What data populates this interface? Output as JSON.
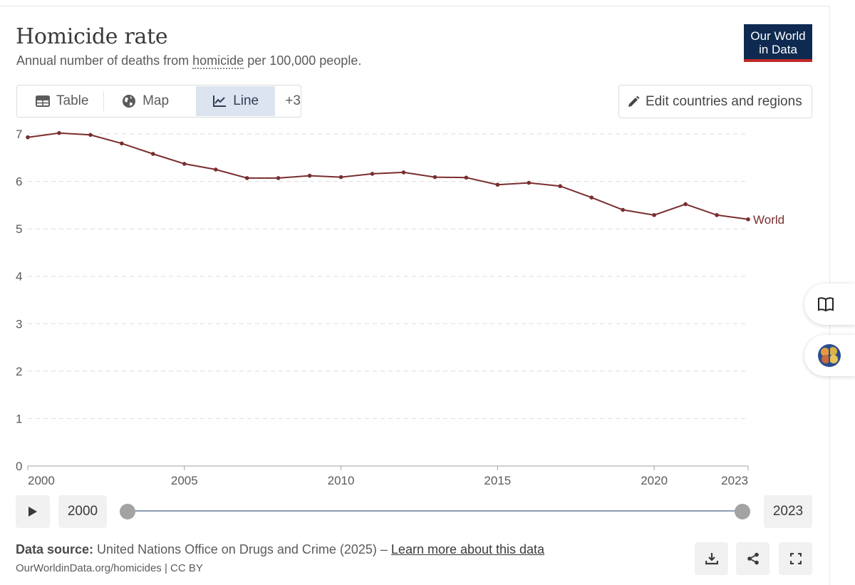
{
  "header": {
    "title": "Homicide rate",
    "subtitle_pre": "Annual number of deaths from ",
    "subtitle_link": "homicide",
    "subtitle_post": " per 100,000 people.",
    "logo_line1": "Our World",
    "logo_line2": "in Data"
  },
  "tabs": {
    "table": "Table",
    "map": "Map",
    "line": "Line",
    "more": "+3",
    "active": "line"
  },
  "edit_button": "Edit countries and regions",
  "colors": {
    "series": "#7a2e2e",
    "grid": "#dddddd",
    "logo_bg": "#0f2a50",
    "logo_accent": "#c0292a",
    "active_tab": "#dce4ef"
  },
  "icons": [
    "table-icon",
    "globe-icon",
    "line-chart-icon",
    "pencil-icon",
    "book-icon",
    "brain-icon",
    "play-icon",
    "download-icon",
    "share-icon",
    "fullscreen-icon"
  ],
  "chart_data": {
    "type": "line",
    "title": "Homicide rate",
    "subtitle": "Annual number of deaths from homicide per 100,000 people.",
    "xlim": [
      2000,
      2023
    ],
    "ylim": [
      0,
      7
    ],
    "yticks": [
      0,
      1,
      2,
      3,
      4,
      5,
      6,
      7
    ],
    "xticks": [
      2000,
      2005,
      2010,
      2015,
      2020,
      2023
    ],
    "grid": "horizontal dashed",
    "series": [
      {
        "name": "World",
        "x": [
          2000,
          2001,
          2002,
          2003,
          2004,
          2005,
          2006,
          2007,
          2008,
          2009,
          2010,
          2011,
          2012,
          2013,
          2014,
          2015,
          2016,
          2017,
          2018,
          2019,
          2020,
          2021,
          2022,
          2023
        ],
        "values": [
          6.93,
          7.02,
          6.98,
          6.8,
          6.58,
          6.37,
          6.25,
          6.07,
          6.07,
          6.12,
          6.09,
          6.16,
          6.19,
          6.09,
          6.08,
          5.93,
          5.97,
          5.9,
          5.66,
          5.4,
          5.29,
          5.52,
          5.29,
          5.2
        ]
      }
    ]
  },
  "timeline": {
    "start": "2000",
    "end": "2023",
    "start_fraction": 0,
    "end_fraction": 1
  },
  "footer": {
    "source_label": "Data source:",
    "source_text": " United Nations Office on Drugs and Crime (2025) – ",
    "learn_more": "Learn more about this data",
    "url": "OurWorldinData.org/homicides | CC BY"
  }
}
